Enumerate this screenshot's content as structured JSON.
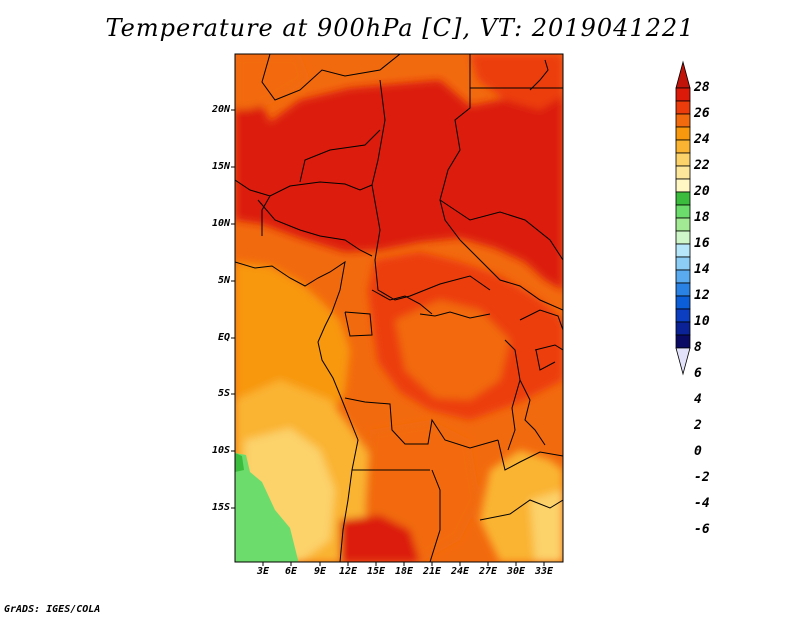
{
  "title": "Temperature at 900hPa [C], VT: 2019041221",
  "credit": "GrADS: IGES/COLA",
  "lat_labels": [
    "20N",
    "15N",
    "10N",
    "5N",
    "EQ",
    "5S",
    "10S",
    "15S"
  ],
  "lon_labels": [
    "3E",
    "6E",
    "9E",
    "12E",
    "15E",
    "18E",
    "21E",
    "24E",
    "27E",
    "30E",
    "33E"
  ],
  "colorbar": {
    "labels": [
      "28",
      "26",
      "24",
      "22",
      "20",
      "18",
      "16",
      "14",
      "12",
      "10",
      "8",
      "6",
      "4",
      "2",
      "0",
      "-2",
      "-4",
      "-6"
    ],
    "colors": [
      "#dc1a0a",
      "#ec3c0c",
      "#f26a0e",
      "#f8980e",
      "#fab432",
      "#fcd26a",
      "#fde79a",
      "#fff8c4",
      "#3cbc3c",
      "#6cdc6c",
      "#a2ea94",
      "#cef6c8",
      "#b6e6fa",
      "#8ccdf6",
      "#5aaaf0",
      "#2a82e4",
      "#0c5ed8",
      "#0c3ec2",
      "#0a2296",
      "#0a0a64",
      "#e2e2fa"
    ],
    "top_color": "#c0140a",
    "bottom_color": "#e2e2fa"
  }
}
